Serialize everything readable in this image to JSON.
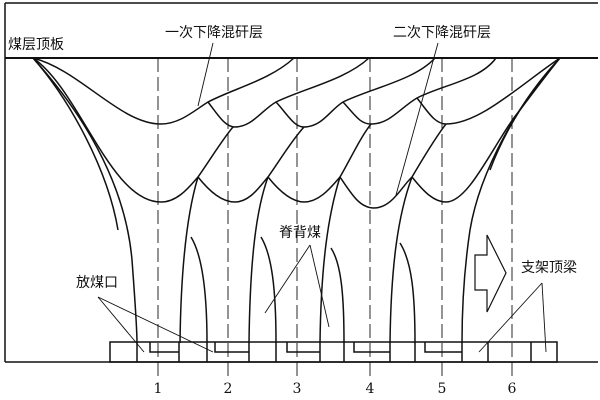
{
  "labels": {
    "roof": "煤层顶板",
    "first_descent": "一次下降混矸层",
    "second_descent": "二次下降混矸层",
    "ridge_coal": "脊背煤",
    "drawing_opening": "放煤口",
    "support_canopy": "支架顶梁"
  },
  "support_numbers": [
    "1",
    "2",
    "3",
    "4",
    "5",
    "6"
  ],
  "icons": {
    "advance_arrow": "hollow-right-arrow"
  },
  "colors": {
    "line": "#111111",
    "background": "#ffffff"
  }
}
